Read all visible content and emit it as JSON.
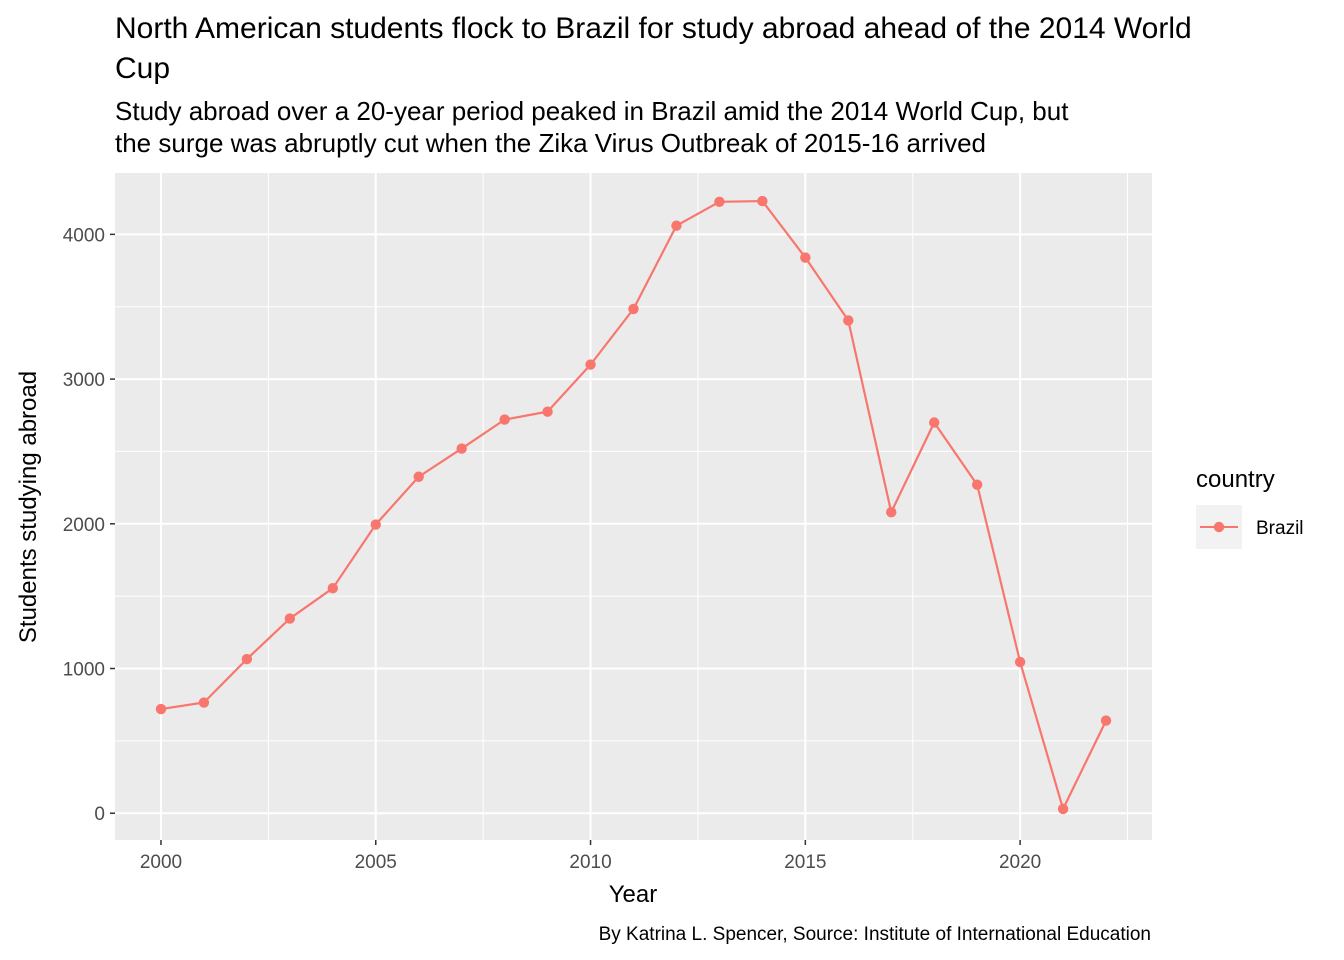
{
  "chart_data": {
    "type": "line",
    "title_lines": [
      "North American students flock to Brazil for study abroad ahead of the 2014 World",
      "Cup"
    ],
    "subtitle_lines": [
      "Study abroad over a 20-year period peaked in Brazil amid the 2014 World Cup, but",
      "the surge was abruptly cut when the Zika Virus Outbreak of 2015-16 arrived"
    ],
    "xlabel": "Year",
    "ylabel": "Students studying abroad",
    "caption": "By Katrina L. Spencer, Source: Institute of International Education",
    "xlim": [
      1998.93,
      2023.07
    ],
    "ylim": [
      -185,
      4424
    ],
    "x_ticks": [
      2000,
      2005,
      2010,
      2015,
      2020
    ],
    "x_tick_labels": [
      "2000",
      "2005",
      "2010",
      "2015",
      "2020"
    ],
    "y_ticks": [
      0,
      1000,
      2000,
      3000,
      4000
    ],
    "y_tick_labels": [
      "0",
      "1000",
      "2000",
      "3000",
      "4000"
    ],
    "legend": {
      "title": "country",
      "position": "right"
    },
    "grid": true,
    "series": [
      {
        "name": "Brazil",
        "color": "#F8766D",
        "x": [
          2000,
          2001,
          2002,
          2003,
          2004,
          2005,
          2006,
          2007,
          2008,
          2009,
          2010,
          2011,
          2012,
          2013,
          2014,
          2015,
          2016,
          2017,
          2018,
          2019,
          2020,
          2021,
          2022
        ],
        "y": [
          720,
          765,
          1065,
          1345,
          1555,
          1995,
          2325,
          2520,
          2720,
          2775,
          3100,
          3485,
          4060,
          4225,
          4230,
          3840,
          3405,
          2080,
          2700,
          2270,
          1045,
          30,
          640
        ]
      }
    ]
  }
}
